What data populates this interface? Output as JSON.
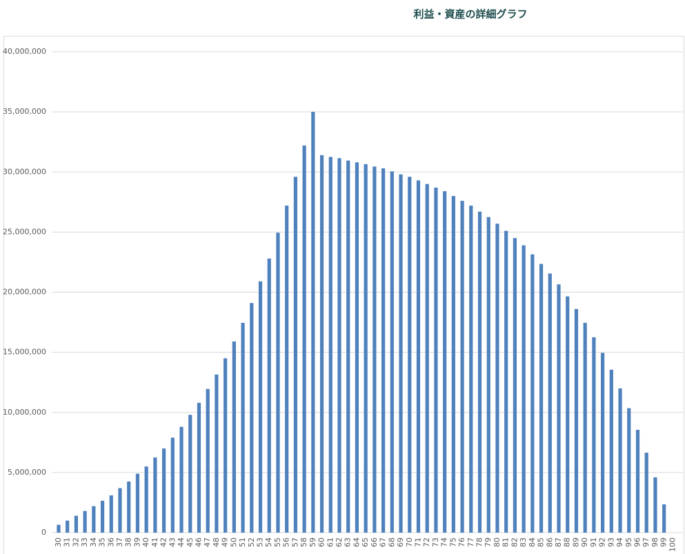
{
  "chart_data": {
    "type": "bar",
    "title": "利益・資産の詳細グラフ",
    "categories": [
      "30",
      "31",
      "32",
      "33",
      "34",
      "35",
      "36",
      "37",
      "38",
      "39",
      "40",
      "41",
      "42",
      "43",
      "44",
      "45",
      "46",
      "47",
      "48",
      "49",
      "50",
      "51",
      "52",
      "53",
      "54",
      "55",
      "56",
      "57",
      "58",
      "59",
      "60",
      "61",
      "62",
      "63",
      "64",
      "65",
      "66",
      "67",
      "68",
      "69",
      "70",
      "71",
      "72",
      "73",
      "74",
      "75",
      "76",
      "77",
      "78",
      "79",
      "80",
      "81",
      "82",
      "83",
      "84",
      "85",
      "86",
      "87",
      "88",
      "89",
      "90",
      "91",
      "92",
      "93",
      "94",
      "95",
      "96",
      "97",
      "98",
      "99",
      "100"
    ],
    "values": [
      650000,
      1000000,
      1400000,
      1800000,
      2200000,
      2650000,
      3100000,
      3700000,
      4250000,
      4900000,
      5500000,
      6250000,
      7000000,
      7900000,
      8800000,
      9800000,
      10800000,
      11950000,
      13150000,
      14500000,
      15900000,
      17450000,
      19100000,
      20900000,
      22800000,
      24950000,
      27200000,
      29600000,
      32200000,
      35000000,
      31400000,
      31250000,
      31150000,
      30950000,
      30800000,
      30650000,
      30450000,
      30300000,
      30050000,
      29800000,
      29600000,
      29300000,
      29000000,
      28700000,
      28400000,
      28000000,
      27600000,
      27200000,
      26700000,
      26250000,
      25700000,
      25100000,
      24500000,
      23900000,
      23150000,
      22350000,
      21550000,
      20650000,
      19650000,
      18600000,
      17450000,
      16250000,
      14950000,
      13550000,
      12000000,
      10350000,
      8550000,
      6650000,
      4600000,
      2350000,
      0
    ],
    "color": "#4f81bd",
    "ylim": [
      0,
      40000000
    ],
    "yticks": [
      0,
      {
        "value": 5000000,
        "label": "5,000,000"
      },
      {
        "value": 10000000,
        "label": "10,000,000"
      },
      {
        "value": 15000000,
        "label": "15,000,000"
      },
      {
        "value": 20000000,
        "label": "20,000,000"
      },
      {
        "value": 25000000,
        "label": "25,000,000"
      },
      {
        "value": 30000000,
        "label": "30,000,000"
      },
      {
        "value": 35000000,
        "label": "35,000,000"
      },
      {
        "value": 40000000,
        "label": "40,000,000"
      }
    ],
    "grid": true
  }
}
